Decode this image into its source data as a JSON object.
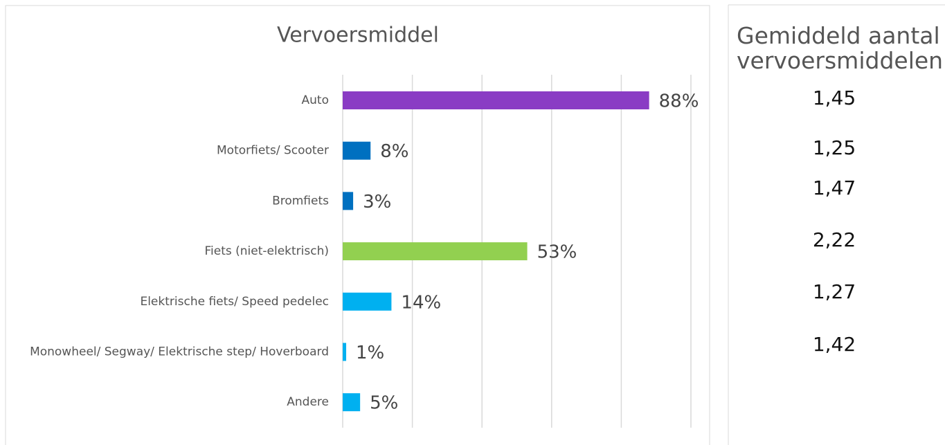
{
  "chart_data": {
    "type": "bar",
    "orientation": "horizontal",
    "title": "Vervoersmiddel",
    "categories": [
      "Auto",
      "Motorfiets/ Scooter",
      "Bromfiets",
      "Fiets (niet-elektrisch)",
      "Elektrische fiets/ Speed pedelec",
      "Monowheel/ Segway/ Elektrische step/ Hoverboard",
      "Andere"
    ],
    "values": [
      88,
      8,
      3,
      53,
      14,
      1,
      5
    ],
    "value_labels": [
      "88%",
      "8%",
      "3%",
      "53%",
      "14%",
      "1%",
      "5%"
    ],
    "colors": [
      "#8a3cc4",
      "#0070c0",
      "#0070c0",
      "#92d050",
      "#00b0f0",
      "#00b0f0",
      "#00b0f0"
    ],
    "xlim": [
      0,
      100
    ],
    "xticks": [
      0,
      20,
      40,
      60,
      80,
      100
    ],
    "grid": true
  },
  "side_table": {
    "title": "Gemiddeld aantal vervoersmiddelen",
    "values": [
      "1,45",
      "1,25",
      "1,47",
      "2,22",
      "1,27",
      "1,42"
    ]
  }
}
